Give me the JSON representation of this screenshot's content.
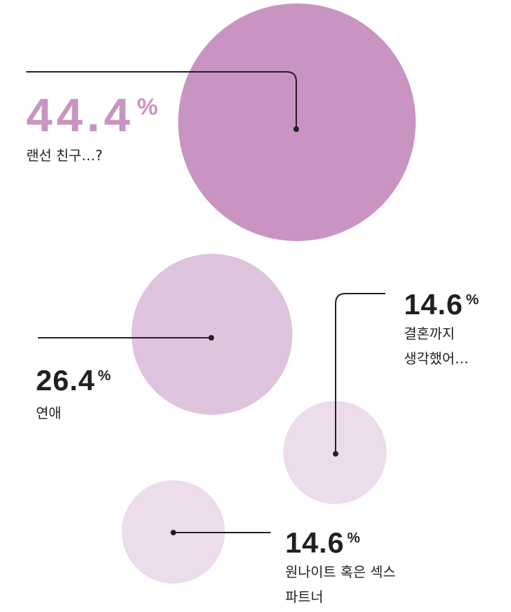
{
  "chart_data": {
    "type": "bubble",
    "unit": "%",
    "categories": [
      [
        "랜선 친구…?"
      ],
      [
        "연애"
      ],
      [
        "결혼까지",
        "생각했어…"
      ],
      [
        "원나이트 혹은 섹스",
        "파트너"
      ]
    ],
    "values": [
      44.4,
      26.4,
      14.6,
      14.6
    ],
    "colors": [
      "#c994c1",
      "#dfc4de",
      "#ecdcec",
      "#ecdcec"
    ]
  }
}
